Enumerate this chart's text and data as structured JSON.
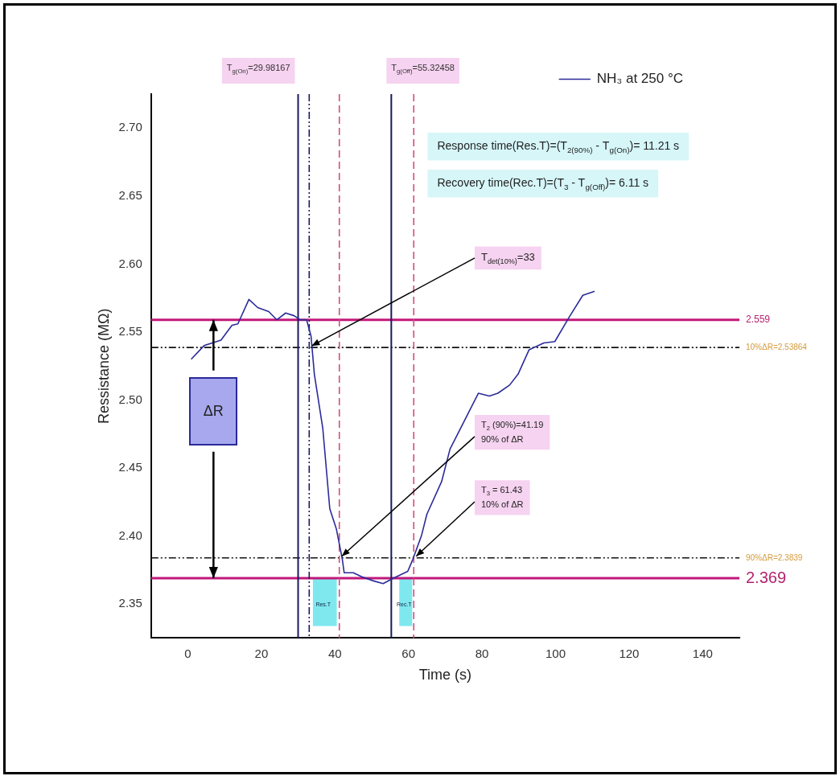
{
  "chart_data": {
    "type": "line",
    "xlabel": "Time (s)",
    "ylabel": "Ressistance (MΩ)",
    "legend": "top right",
    "marker": "none",
    "line_style": "solid",
    "grid": false,
    "xlim": [
      -10,
      150
    ],
    "xticks": [
      0,
      20,
      40,
      60,
      80,
      100,
      120,
      140
    ],
    "ylim": [
      2.325,
      2.725
    ],
    "yticks": [
      2.35,
      {
        "value": 2.4,
        "label": "2.40"
      },
      2.45,
      {
        "value": 2.5,
        "label": "2.50"
      },
      2.55,
      {
        "value": 2.6,
        "label": "2.60"
      },
      2.65,
      {
        "value": 2.7,
        "label": "2.70"
      }
    ],
    "series": [
      {
        "name": "NH₃ at 250 °C",
        "color": "#2b2b9a",
        "x": [
          0.9,
          4.4,
          9,
          12,
          13.6,
          16.6,
          19,
          22,
          24.2,
          26.6,
          28.9,
          30.5,
          32.3,
          33.5,
          34.4,
          36.7,
          38.6,
          40.4,
          42,
          42.5,
          45,
          47.3,
          50.5,
          53.1,
          55.9,
          59.8,
          61.2,
          63.5,
          65,
          69,
          71.3,
          76,
          79,
          82,
          84.3,
          87.5,
          89.8,
          92.8,
          96.8,
          99.8,
          103.7,
          107.4,
          110.6
        ],
        "values": [
          2.53,
          2.54,
          2.544,
          2.555,
          2.556,
          2.574,
          2.568,
          2.565,
          2.559,
          2.564,
          2.562,
          2.559,
          2.559,
          2.547,
          2.519,
          2.479,
          2.42,
          2.405,
          2.383,
          2.373,
          2.373,
          2.37,
          2.367,
          2.365,
          2.369,
          2.374,
          2.383,
          2.4,
          2.416,
          2.44,
          2.464,
          2.489,
          2.505,
          2.503,
          2.505,
          2.511,
          2.519,
          2.537,
          2.542,
          2.543,
          2.561,
          2.577,
          2.58
        ]
      }
    ],
    "ref_lines": [
      {
        "axis": "y",
        "value": 2.559,
        "label": "2.559",
        "color": "#c2187a",
        "line_style": "solid"
      },
      {
        "axis": "y",
        "value": 2.53864,
        "label": "10%ΔR=2.53864",
        "color": "#111111",
        "line_style": "dotted"
      },
      {
        "axis": "y",
        "value": 2.3839,
        "label": "90%ΔR=2.3839",
        "color": "#111111",
        "line_style": "dotted"
      },
      {
        "axis": "y",
        "value": 2.369,
        "label": "2.369",
        "color": "#c2187a",
        "line_style": "solid"
      },
      {
        "axis": "x",
        "value": 29.98167,
        "label": "T$_{g(On)}$=29.98167",
        "color": "#1a1a5e",
        "line_style": "solid"
      },
      {
        "axis": "x",
        "value": 55.32458,
        "label": "T$_{g(Off)}$=55.32458",
        "color": "#1a1a5e",
        "line_style": "solid"
      },
      {
        "axis": "x",
        "value": 33,
        "color": "#1a1a5e",
        "line_style": "dotted"
      },
      {
        "axis": "x",
        "value": 41.19,
        "color": "#d0507a",
        "line_style": "dashed"
      },
      {
        "axis": "x",
        "value": 61.43,
        "color": "#d0507a",
        "line_style": "dashed"
      }
    ],
    "bands": [
      {
        "axis": "x",
        "from": 34,
        "to": 40.5,
        "label": "Res.T",
        "color": "#7fe8ef"
      },
      {
        "axis": "x",
        "from": 57.5,
        "to": 61,
        "label": "Rec.T",
        "color": "#7fe8ef"
      }
    ],
    "annotations": [
      "Response time(Res.T)=(T$_{2(90%)}$ - T$_{g(On)}$)= 11.21 s",
      "Recovery time(Rec.T)=(T$_{3}$ - T$_{g(Off)}$)= 6.11 s",
      "ΔR",
      {
        "text": "T$_{det(10%)}$=33",
        "x": 33,
        "y": 2.53864
      },
      {
        "text": "T$_{2}$ (90%)=41.19\n90% of ΔR",
        "x": 41.19,
        "y": 2.3839
      },
      {
        "text": "T$_{3}$ = 61.43\n10% of ΔR",
        "x": 61.43,
        "y": 2.3839
      }
    ]
  }
}
